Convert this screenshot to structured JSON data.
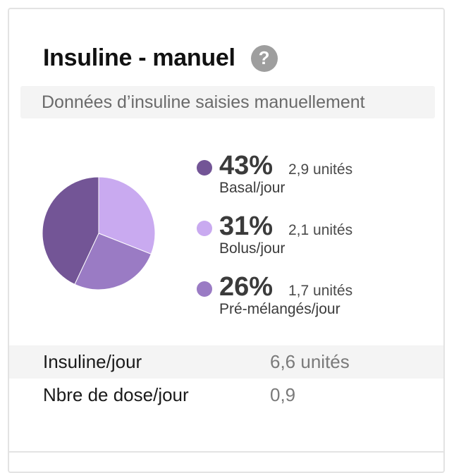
{
  "card": {
    "title": "Insuline - manuel",
    "help_icon": "?",
    "subtitle": "Données d’insuline saisies manuellement"
  },
  "chart_data": {
    "type": "pie",
    "series": [
      {
        "name": "Basal/jour",
        "percent": 43,
        "percent_label": "43%",
        "units_label": "2,9 unités",
        "value": 2.9,
        "color": "#735596"
      },
      {
        "name": "Bolus/jour",
        "percent": 31,
        "percent_label": "31%",
        "units_label": "2,1 unités",
        "value": 2.1,
        "color": "#c9aaf0"
      },
      {
        "name": "Pré-mélangés/jour",
        "percent": 26,
        "percent_label": "26%",
        "units_label": "1,7 unités",
        "value": 1.7,
        "color": "#9a7bc4"
      }
    ]
  },
  "stats": [
    {
      "label": "Insuline/jour",
      "value": "6,6 unités"
    },
    {
      "label": "Nbre de dose/jour",
      "value": "0,9"
    }
  ]
}
